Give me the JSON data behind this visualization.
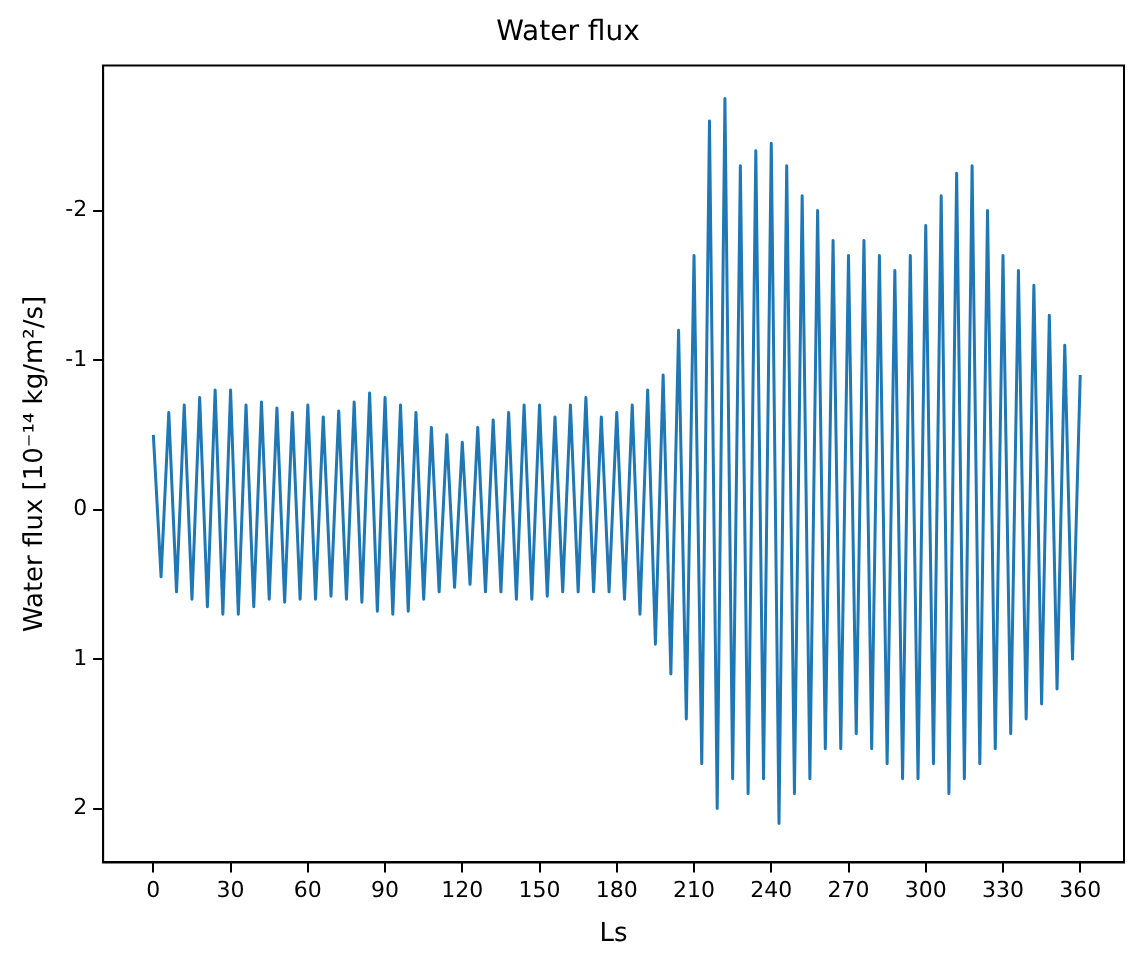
{
  "chart_data": {
    "type": "line",
    "title": "Water flux",
    "xlabel": "Ls",
    "ylabel": "Water flux [10⁻¹⁴ kg/m²/s]",
    "x": [
      0,
      3,
      6,
      9,
      12,
      15,
      18,
      21,
      24,
      27,
      30,
      33,
      36,
      39,
      42,
      45,
      48,
      51,
      54,
      57,
      60,
      63,
      66,
      69,
      72,
      75,
      78,
      81,
      84,
      87,
      90,
      93,
      96,
      99,
      102,
      105,
      108,
      111,
      114,
      117,
      120,
      123,
      126,
      129,
      132,
      135,
      138,
      141,
      144,
      147,
      150,
      153,
      156,
      159,
      162,
      165,
      168,
      171,
      174,
      177,
      180,
      183,
      186,
      189,
      192,
      195,
      198,
      201,
      204,
      207,
      210,
      213,
      216,
      219,
      222,
      225,
      228,
      231,
      234,
      237,
      240,
      243,
      246,
      249,
      252,
      255,
      258,
      261,
      264,
      267,
      270,
      273,
      276,
      279,
      282,
      285,
      288,
      291,
      294,
      297,
      300,
      303,
      306,
      309,
      312,
      315,
      318,
      321,
      324,
      327,
      330,
      333,
      336,
      339,
      342,
      345,
      348,
      351,
      354,
      357,
      360
    ],
    "series": [
      {
        "color": "#1f77b4",
        "values": [
          -0.5,
          0.45,
          -0.65,
          0.55,
          -0.7,
          0.6,
          -0.75,
          0.65,
          -0.8,
          0.7,
          -0.8,
          0.7,
          -0.7,
          0.65,
          -0.72,
          0.6,
          -0.68,
          0.62,
          -0.65,
          0.6,
          -0.7,
          0.6,
          -0.62,
          0.58,
          -0.66,
          0.6,
          -0.72,
          0.62,
          -0.78,
          0.68,
          -0.75,
          0.7,
          -0.7,
          0.68,
          -0.65,
          0.6,
          -0.55,
          0.55,
          -0.5,
          0.52,
          -0.45,
          0.5,
          -0.55,
          0.55,
          -0.6,
          0.55,
          -0.65,
          0.6,
          -0.7,
          0.6,
          -0.7,
          0.58,
          -0.62,
          0.55,
          -0.7,
          0.55,
          -0.75,
          0.55,
          -0.62,
          0.55,
          -0.65,
          0.6,
          -0.7,
          0.7,
          -0.8,
          0.9,
          -0.9,
          1.1,
          -1.2,
          1.4,
          -1.7,
          1.7,
          -2.6,
          2.0,
          -2.75,
          1.8,
          -2.3,
          1.9,
          -2.4,
          1.8,
          -2.45,
          2.1,
          -2.3,
          1.9,
          -2.1,
          1.8,
          -2.0,
          1.6,
          -1.8,
          1.6,
          -1.7,
          1.5,
          -1.8,
          1.6,
          -1.7,
          1.7,
          -1.6,
          1.8,
          -1.7,
          1.8,
          -1.9,
          1.7,
          -2.1,
          1.9,
          -2.25,
          1.8,
          -2.3,
          1.7,
          -2.0,
          1.6,
          -1.7,
          1.5,
          -1.6,
          1.4,
          -1.5,
          1.3,
          -1.3,
          1.2,
          -1.1,
          1.0,
          -0.9
        ]
      }
    ],
    "xlim": [
      -19.5,
      377
    ],
    "xticks": [
      0,
      30,
      60,
      90,
      120,
      150,
      180,
      210,
      240,
      270,
      300,
      330,
      360
    ],
    "ylim": [
      2.36,
      -2.97
    ],
    "yticks": [
      -2,
      -1,
      0,
      1,
      2
    ],
    "grid": false,
    "legend": false,
    "marker": "none",
    "line_style": "solid"
  }
}
